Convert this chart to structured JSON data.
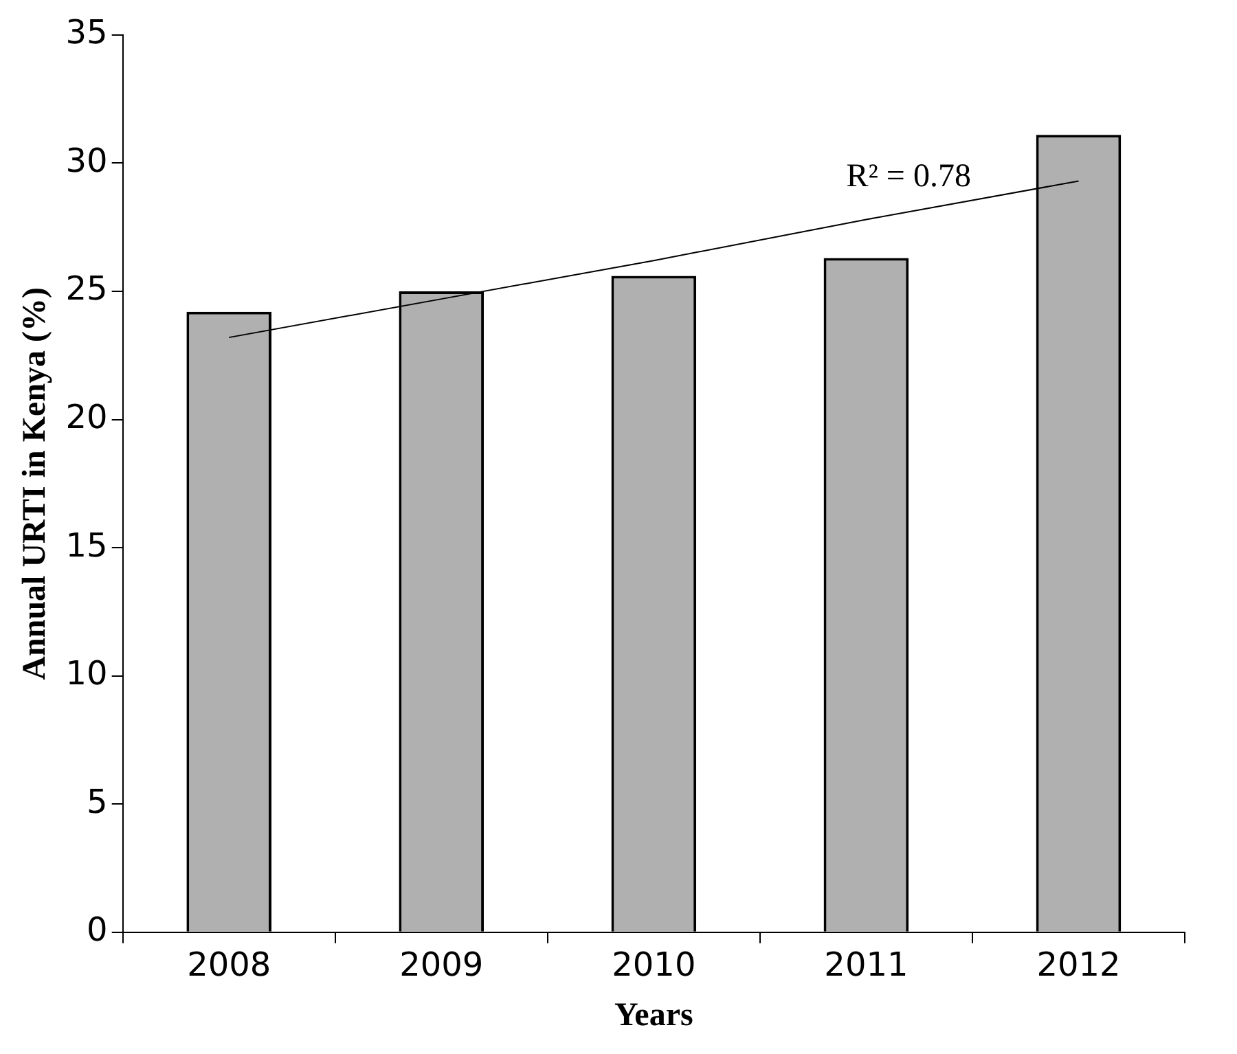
{
  "chart_data": {
    "type": "bar",
    "xlabel": "Years",
    "ylabel": "Annual URTI in Kenya (%)",
    "categories": [
      "2008",
      "2009",
      "2010",
      "2011",
      "2012"
    ],
    "series": [
      {
        "color": "#b0b0b0",
        "values": [
          24.2,
          25.0,
          25.6,
          26.3,
          31.1
        ]
      },
      {
        "type": "line",
        "color": "#000000",
        "values": [
          23.2,
          24.7,
          26.2,
          27.8,
          29.3
        ]
      }
    ],
    "ylim": [
      0,
      35
    ],
    "yticks": [
      0,
      5,
      10,
      15,
      20,
      25,
      30,
      35
    ],
    "grid": false,
    "legend": false,
    "marker": "none",
    "annotations": [
      "R² = 0.78"
    ]
  }
}
